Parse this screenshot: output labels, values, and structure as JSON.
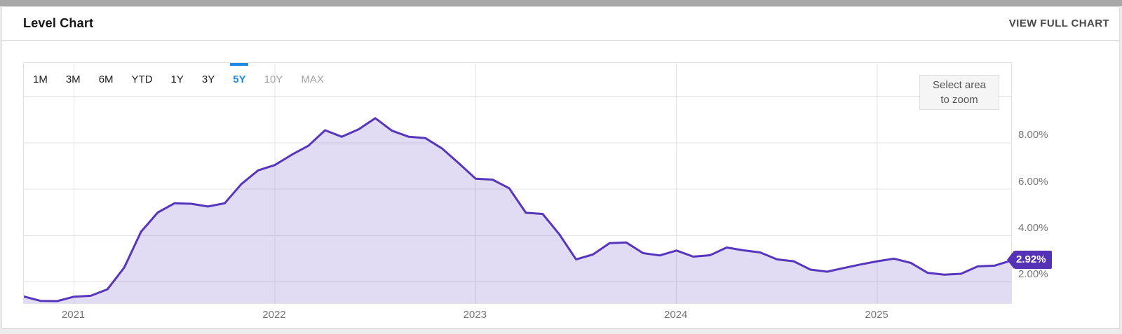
{
  "header": {
    "title": "Level Chart",
    "view_full_chart": "VIEW FULL CHART"
  },
  "time_ranges": [
    {
      "label": "1M",
      "state": "normal"
    },
    {
      "label": "3M",
      "state": "normal"
    },
    {
      "label": "6M",
      "state": "normal"
    },
    {
      "label": "YTD",
      "state": "normal"
    },
    {
      "label": "1Y",
      "state": "normal"
    },
    {
      "label": "3Y",
      "state": "normal"
    },
    {
      "label": "5Y",
      "state": "active"
    },
    {
      "label": "10Y",
      "state": "disabled"
    },
    {
      "label": "MAX",
      "state": "disabled"
    }
  ],
  "chart": {
    "zoom_hint": [
      "Select area",
      "to zoom"
    ],
    "current_value_label": "2.92%"
  },
  "colors": {
    "line": "#5735bd",
    "fill": "rgba(87,53,189,0.18)",
    "badge_bg": "#5531b5",
    "badge_text": "#ffffff",
    "active_range": "#1e88e5",
    "axis_text": "#757575"
  },
  "chart_data": {
    "type": "area",
    "title": "Level Chart",
    "x": [
      "2020-09",
      "2020-10",
      "2020-11",
      "2020-12",
      "2021-01",
      "2021-02",
      "2021-03",
      "2021-04",
      "2021-05",
      "2021-06",
      "2021-07",
      "2021-08",
      "2021-09",
      "2021-10",
      "2021-11",
      "2021-12",
      "2022-01",
      "2022-02",
      "2022-03",
      "2022-04",
      "2022-05",
      "2022-06",
      "2022-07",
      "2022-08",
      "2022-09",
      "2022-10",
      "2022-11",
      "2022-12",
      "2023-01",
      "2023-02",
      "2023-03",
      "2023-04",
      "2023-05",
      "2023-06",
      "2023-07",
      "2023-08",
      "2023-09",
      "2023-10",
      "2023-11",
      "2023-12",
      "2024-01",
      "2024-02",
      "2024-03",
      "2024-04",
      "2024-05",
      "2024-06",
      "2024-07",
      "2024-08",
      "2024-09",
      "2024-10",
      "2024-11",
      "2024-12",
      "2025-01",
      "2025-02",
      "2025-03",
      "2025-04",
      "2025-05",
      "2025-06",
      "2025-07",
      "2025-08"
    ],
    "values": [
      1.37,
      1.18,
      1.17,
      1.36,
      1.4,
      1.68,
      2.62,
      4.16,
      4.99,
      5.39,
      5.37,
      5.25,
      5.39,
      6.22,
      6.81,
      7.04,
      7.48,
      7.87,
      8.54,
      8.26,
      8.58,
      9.06,
      8.52,
      8.26,
      8.2,
      7.75,
      7.11,
      6.45,
      6.41,
      6.04,
      4.98,
      4.93,
      4.05,
      2.97,
      3.18,
      3.67,
      3.7,
      3.24,
      3.14,
      3.35,
      3.09,
      3.15,
      3.48,
      3.36,
      3.27,
      2.97,
      2.89,
      2.53,
      2.44,
      2.6,
      2.75,
      2.89,
      3.0,
      2.82,
      2.39,
      2.31,
      2.35,
      2.67,
      2.7,
      2.92
    ],
    "last_value": 2.92,
    "y_ticks": [
      {
        "value": 8,
        "label": "8.00%"
      },
      {
        "value": 6,
        "label": "6.00%"
      },
      {
        "value": 4,
        "label": "4.00%"
      },
      {
        "value": 2,
        "label": "2.00%"
      }
    ],
    "y_gridlines": [
      10,
      8,
      6,
      4,
      2
    ],
    "year_ticks": [
      {
        "label": "2021",
        "month_index": 3
      },
      {
        "label": "2022",
        "month_index": 15
      },
      {
        "label": "2023",
        "month_index": 27
      },
      {
        "label": "2024",
        "month_index": 39
      },
      {
        "label": "2025",
        "month_index": 51
      }
    ],
    "ylim": [
      1.08,
      11.44
    ],
    "xlabel": "",
    "ylabel": "",
    "grid": true,
    "legend": "none"
  }
}
